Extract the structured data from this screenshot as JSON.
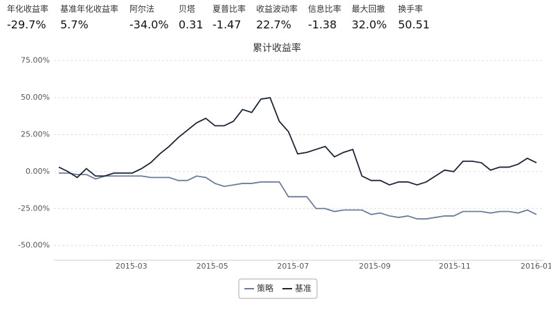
{
  "stats": [
    {
      "label": "年化收益率",
      "value": "-29.7%"
    },
    {
      "label": "基准年化收益率",
      "value": "5.7%"
    },
    {
      "label": "阿尔法",
      "value": "-34.0%"
    },
    {
      "label": "贝塔",
      "value": "0.31"
    },
    {
      "label": "夏普比率",
      "value": "-1.47"
    },
    {
      "label": "收益波动率",
      "value": "22.7%"
    },
    {
      "label": "信息比率",
      "value": "-1.38"
    },
    {
      "label": "最大回撤",
      "value": "32.0%"
    },
    {
      "label": "换手率",
      "value": "50.51"
    }
  ],
  "chart_data": {
    "type": "line",
    "title": "累计收益率",
    "categories": [
      null,
      null,
      null,
      null,
      null,
      null,
      null,
      null,
      null,
      null,
      null,
      null,
      null,
      null,
      null,
      null,
      null,
      null,
      null,
      null,
      null,
      null,
      null,
      null,
      null,
      null,
      null,
      null,
      null,
      null,
      null,
      null,
      null,
      null,
      null,
      null,
      null,
      null,
      null,
      null,
      null,
      null,
      null,
      null,
      null,
      null,
      null,
      null,
      null,
      null,
      null,
      null,
      null
    ],
    "xlim": [
      0,
      52
    ],
    "xticks": [
      {
        "value": 7.9,
        "label": "2015-03"
      },
      {
        "value": 16.7,
        "label": "2015-05"
      },
      {
        "value": 25.5,
        "label": "2015-07"
      },
      {
        "value": 34.4,
        "label": "2015-09"
      },
      {
        "value": 43.1,
        "label": "2015-11"
      },
      {
        "value": 52,
        "label": "2016-01"
      }
    ],
    "ylim": [
      -60,
      80
    ],
    "yticks": [
      {
        "value": 75,
        "label": "75.00%"
      },
      {
        "value": 50,
        "label": "50.00%"
      },
      {
        "value": 25,
        "label": "25.00%"
      },
      {
        "value": 0,
        "label": "0.00%"
      },
      {
        "value": -25,
        "label": "-25.00%"
      },
      {
        "value": -50,
        "label": "-50.00%"
      }
    ],
    "grid": true,
    "legend": "bottom",
    "series": [
      {
        "name": "策略",
        "color": "#6a7c99",
        "values": [
          -1,
          -1,
          -2,
          -2,
          -5,
          -3,
          -3,
          -3,
          -3,
          -3,
          -4,
          -4,
          -4,
          -6,
          -6,
          -3,
          -4,
          -8,
          -10,
          -9,
          -8,
          -8,
          -7,
          -7,
          -7,
          -17,
          -17,
          -17,
          -25,
          -25,
          -27,
          -26,
          -26,
          -26,
          -29,
          -28,
          -30,
          -31,
          -30,
          -32,
          -32,
          -31,
          -30,
          -30,
          -27,
          -27,
          -27,
          -28,
          -27,
          -27,
          -28,
          -26,
          -29
        ]
      },
      {
        "name": "基准",
        "color": "#1c2433",
        "values": [
          3,
          0,
          -4,
          2,
          -3,
          -3,
          -1,
          -1,
          -1,
          2,
          6,
          12,
          17,
          23,
          28,
          33,
          36,
          31,
          31,
          34,
          42,
          40,
          49,
          50,
          34,
          27,
          12,
          13,
          15,
          17,
          10,
          13,
          15,
          -3,
          -6,
          -6,
          -9,
          -7,
          -7,
          -9,
          -7,
          -3,
          1,
          0,
          7,
          7,
          6,
          1,
          3,
          3,
          5,
          9,
          6
        ]
      }
    ]
  }
}
